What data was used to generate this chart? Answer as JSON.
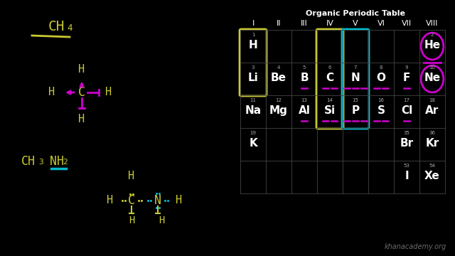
{
  "background_color": "#000000",
  "title_text": "Organic Periodic Table",
  "yellow": "#c8c832",
  "magenta": "#cc00cc",
  "cyan": "#00bbcc",
  "white": "#ffffff",
  "gray": "#888888",
  "watermark": "khanacademy.org",
  "pt_groups": [
    "I",
    "II",
    "III",
    "IV",
    "V",
    "VI",
    "VII",
    "VIII"
  ],
  "pt_elements": [
    {
      "sym": "H",
      "num": 1,
      "col": 0,
      "row": 0
    },
    {
      "sym": "He",
      "num": 2,
      "col": 7,
      "row": 0
    },
    {
      "sym": "Li",
      "num": 3,
      "col": 0,
      "row": 1
    },
    {
      "sym": "Be",
      "num": 4,
      "col": 1,
      "row": 1
    },
    {
      "sym": "B",
      "num": 5,
      "col": 2,
      "row": 1
    },
    {
      "sym": "C",
      "num": 6,
      "col": 3,
      "row": 1
    },
    {
      "sym": "N",
      "num": 7,
      "col": 4,
      "row": 1
    },
    {
      "sym": "O",
      "num": 8,
      "col": 5,
      "row": 1
    },
    {
      "sym": "F",
      "num": 9,
      "col": 6,
      "row": 1
    },
    {
      "sym": "Ne",
      "num": 10,
      "col": 7,
      "row": 1
    },
    {
      "sym": "Na",
      "num": 11,
      "col": 0,
      "row": 2
    },
    {
      "sym": "Mg",
      "num": 12,
      "col": 1,
      "row": 2
    },
    {
      "sym": "Al",
      "num": 13,
      "col": 2,
      "row": 2
    },
    {
      "sym": "Si",
      "num": 14,
      "col": 3,
      "row": 2
    },
    {
      "sym": "P",
      "num": 15,
      "col": 4,
      "row": 2
    },
    {
      "sym": "S",
      "num": 16,
      "col": 5,
      "row": 2
    },
    {
      "sym": "Cl",
      "num": 17,
      "col": 6,
      "row": 2
    },
    {
      "sym": "Ar",
      "num": 18,
      "col": 7,
      "row": 2
    },
    {
      "sym": "K",
      "num": 19,
      "col": 0,
      "row": 3
    },
    {
      "sym": "Br",
      "num": 35,
      "col": 6,
      "row": 3
    },
    {
      "sym": "Kr",
      "num": 36,
      "col": 7,
      "row": 3
    },
    {
      "sym": "I",
      "num": 53,
      "col": 6,
      "row": 4
    },
    {
      "sym": "Xe",
      "num": 54,
      "col": 7,
      "row": 4
    }
  ],
  "bonds_row1": [
    0,
    0,
    1,
    2,
    3,
    2,
    1,
    0
  ],
  "bonds_row2": [
    0,
    0,
    1,
    2,
    3,
    2,
    1,
    0
  ]
}
